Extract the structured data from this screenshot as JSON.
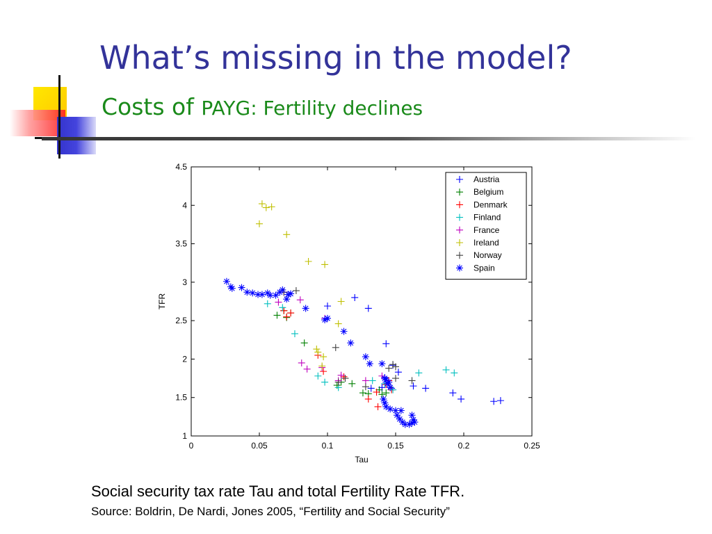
{
  "slide": {
    "title": "What’s missing in the model?",
    "subtitle_part1": "Costs of ",
    "subtitle_part2": "PAYG: Fertility declines",
    "caption": "Social security tax rate Tau and total Fertility Rate TFR.",
    "source": "Source: Boldrin, De Nardi, Jones 2005, “Fertility and Social Security”",
    "colors": {
      "title": "#333399",
      "subtitle": "#1a8a1a",
      "deco_yellow": "#ffd700",
      "deco_blue": "#3333cc",
      "deco_red": "#ff3333"
    }
  },
  "chart_data": {
    "type": "scatter",
    "title": "",
    "xlabel": "Tau",
    "ylabel": "TFR",
    "xlim": [
      0,
      0.25
    ],
    "ylim": [
      1,
      4.5
    ],
    "xticks": [
      0,
      0.05,
      0.1,
      0.15,
      0.2,
      0.25
    ],
    "xtick_labels": [
      "0",
      "0.05",
      "0.1",
      "0.15",
      "0.2",
      "0.25"
    ],
    "yticks": [
      1,
      1.5,
      2,
      2.5,
      3,
      3.5,
      4,
      4.5
    ],
    "ytick_labels": [
      "1",
      "1.5",
      "2",
      "2.5",
      "3",
      "3.5",
      "4",
      "4.5"
    ],
    "grid": false,
    "legend_position": "top-right",
    "series": [
      {
        "name": "Austria",
        "color": "#0000ff",
        "marker": "+",
        "points": [
          [
            0.1,
            2.69
          ],
          [
            0.12,
            2.8
          ],
          [
            0.13,
            2.66
          ],
          [
            0.143,
            2.2
          ],
          [
            0.148,
            1.92
          ],
          [
            0.152,
            1.83
          ],
          [
            0.143,
            1.7
          ],
          [
            0.14,
            1.63
          ],
          [
            0.147,
            1.62
          ],
          [
            0.172,
            1.62
          ],
          [
            0.163,
            1.65
          ],
          [
            0.192,
            1.56
          ],
          [
            0.198,
            1.48
          ],
          [
            0.222,
            1.45
          ],
          [
            0.227,
            1.46
          ],
          [
            0.142,
            1.76
          ],
          [
            0.132,
            1.62
          ]
        ]
      },
      {
        "name": "Belgium",
        "color": "#008000",
        "marker": "+",
        "points": [
          [
            0.063,
            2.57
          ],
          [
            0.07,
            2.54
          ],
          [
            0.068,
            2.63
          ],
          [
            0.073,
            2.6
          ],
          [
            0.083,
            2.21
          ],
          [
            0.107,
            1.66
          ],
          [
            0.11,
            1.7
          ],
          [
            0.118,
            1.68
          ],
          [
            0.126,
            1.56
          ],
          [
            0.13,
            1.55
          ],
          [
            0.14,
            1.54
          ],
          [
            0.143,
            1.56
          ],
          [
            0.138,
            1.6
          ]
        ]
      },
      {
        "name": "Denmark",
        "color": "#ff0000",
        "marker": "+",
        "points": [
          [
            0.068,
            2.63
          ],
          [
            0.07,
            2.55
          ],
          [
            0.073,
            2.6
          ],
          [
            0.093,
            2.05
          ],
          [
            0.097,
            1.84
          ],
          [
            0.112,
            1.77
          ],
          [
            0.13,
            1.48
          ],
          [
            0.137,
            1.38
          ],
          [
            0.143,
            1.67
          ],
          [
            0.145,
            1.72
          ],
          [
            0.147,
            1.6
          ],
          [
            0.136,
            1.57
          ]
        ]
      },
      {
        "name": "Finland",
        "color": "#00bfbf",
        "marker": "+",
        "points": [
          [
            0.056,
            2.72
          ],
          [
            0.067,
            2.67
          ],
          [
            0.076,
            2.33
          ],
          [
            0.093,
            1.78
          ],
          [
            0.098,
            1.7
          ],
          [
            0.108,
            1.63
          ],
          [
            0.133,
            1.72
          ],
          [
            0.142,
            1.68
          ],
          [
            0.148,
            1.6
          ],
          [
            0.167,
            1.82
          ],
          [
            0.187,
            1.86
          ],
          [
            0.193,
            1.82
          ]
        ]
      },
      {
        "name": "France",
        "color": "#bf00bf",
        "marker": "+",
        "points": [
          [
            0.064,
            2.74
          ],
          [
            0.068,
            2.87
          ],
          [
            0.08,
            2.77
          ],
          [
            0.081,
            1.95
          ],
          [
            0.085,
            1.87
          ],
          [
            0.096,
            1.89
          ],
          [
            0.098,
            2.53
          ],
          [
            0.108,
            1.72
          ],
          [
            0.11,
            1.79
          ],
          [
            0.128,
            1.72
          ],
          [
            0.14,
            1.78
          ]
        ]
      },
      {
        "name": "Ireland",
        "color": "#bfbf00",
        "marker": "+",
        "points": [
          [
            0.05,
            3.76
          ],
          [
            0.052,
            4.02
          ],
          [
            0.055,
            3.97
          ],
          [
            0.059,
            3.98
          ],
          [
            0.07,
            3.62
          ],
          [
            0.086,
            3.27
          ],
          [
            0.098,
            3.23
          ],
          [
            0.092,
            2.13
          ],
          [
            0.093,
            2.09
          ],
          [
            0.097,
            2.03
          ],
          [
            0.096,
            1.91
          ],
          [
            0.108,
            2.46
          ],
          [
            0.11,
            2.75
          ]
        ]
      },
      {
        "name": "Norway",
        "color": "#404040",
        "marker": "+",
        "points": [
          [
            0.068,
            2.87
          ],
          [
            0.077,
            2.89
          ],
          [
            0.106,
            2.15
          ],
          [
            0.108,
            1.7
          ],
          [
            0.113,
            1.75
          ],
          [
            0.128,
            1.64
          ],
          [
            0.145,
            1.88
          ],
          [
            0.148,
            1.93
          ],
          [
            0.15,
            1.9
          ],
          [
            0.15,
            1.75
          ],
          [
            0.162,
            1.72
          ]
        ]
      },
      {
        "name": "Spain",
        "color": "#0000ff",
        "marker": "*",
        "points": [
          [
            0.026,
            3.01
          ],
          [
            0.029,
            2.94
          ],
          [
            0.03,
            2.92
          ],
          [
            0.037,
            2.93
          ],
          [
            0.041,
            2.87
          ],
          [
            0.045,
            2.86
          ],
          [
            0.049,
            2.84
          ],
          [
            0.052,
            2.84
          ],
          [
            0.056,
            2.86
          ],
          [
            0.058,
            2.83
          ],
          [
            0.062,
            2.83
          ],
          [
            0.065,
            2.87
          ],
          [
            0.067,
            2.9
          ],
          [
            0.07,
            2.78
          ],
          [
            0.071,
            2.84
          ],
          [
            0.073,
            2.85
          ],
          [
            0.084,
            2.66
          ],
          [
            0.098,
            2.51
          ],
          [
            0.1,
            2.53
          ],
          [
            0.112,
            2.36
          ],
          [
            0.117,
            2.21
          ],
          [
            0.128,
            2.03
          ],
          [
            0.131,
            1.94
          ],
          [
            0.14,
            1.94
          ],
          [
            0.142,
            1.75
          ],
          [
            0.143,
            1.73
          ],
          [
            0.145,
            1.7
          ],
          [
            0.144,
            1.68
          ],
          [
            0.146,
            1.63
          ],
          [
            0.141,
            1.48
          ],
          [
            0.142,
            1.43
          ],
          [
            0.143,
            1.38
          ],
          [
            0.146,
            1.35
          ],
          [
            0.15,
            1.33
          ],
          [
            0.154,
            1.33
          ],
          [
            0.151,
            1.27
          ],
          [
            0.153,
            1.22
          ],
          [
            0.155,
            1.18
          ],
          [
            0.157,
            1.15
          ],
          [
            0.16,
            1.15
          ],
          [
            0.162,
            1.17
          ],
          [
            0.163,
            1.21
          ],
          [
            0.164,
            1.18
          ],
          [
            0.162,
            1.27
          ]
        ]
      }
    ]
  }
}
